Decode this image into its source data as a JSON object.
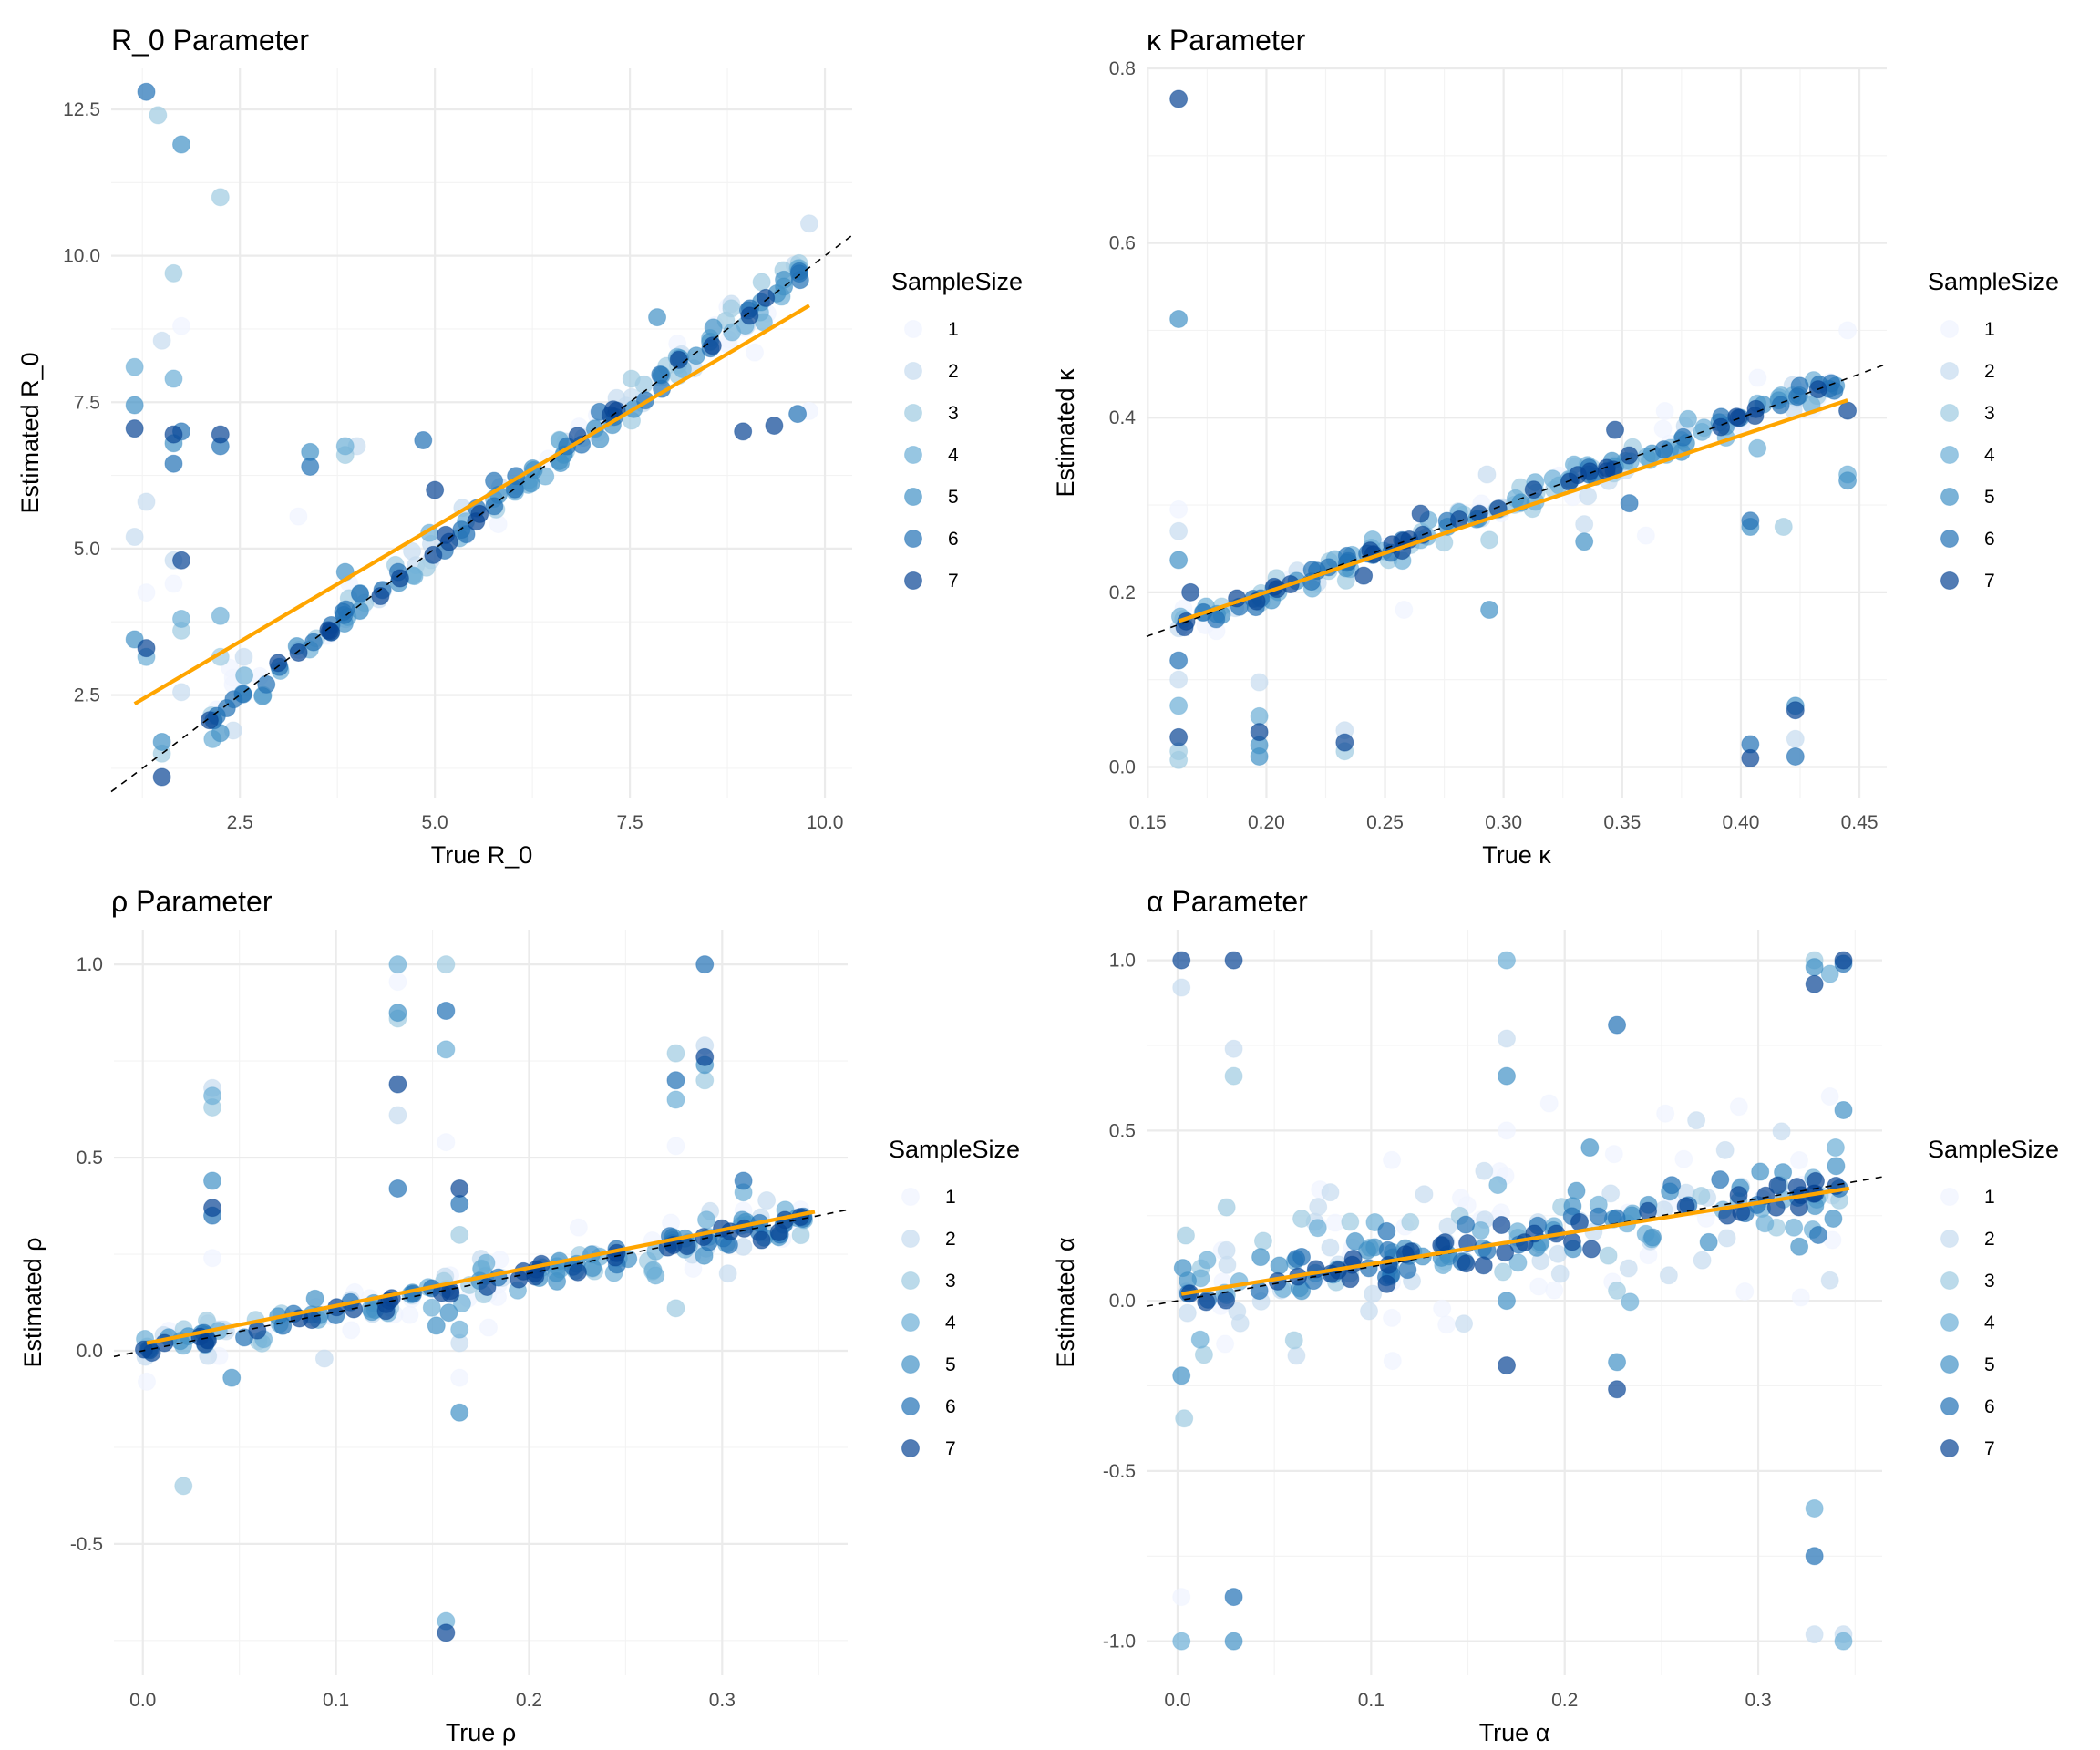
{
  "legend": {
    "title": "SampleSize",
    "levels": [
      "1",
      "2",
      "3",
      "4",
      "5",
      "6",
      "7"
    ],
    "colors": [
      "#eff3ff",
      "#c6dbef",
      "#9ecae1",
      "#6baed6",
      "#4292c6",
      "#2171b5",
      "#084594"
    ],
    "point_alpha": 0.7
  },
  "fit_line_color": "#FFA500",
  "reference_line": "y = x (dashed black)",
  "chart_data": [
    {
      "type": "scatter",
      "id": "r0",
      "title": "R_0 Parameter",
      "xlabel": "True R_0",
      "ylabel": "Estimated R_0",
      "xlim": [
        0.85,
        10.35
      ],
      "ylim": [
        0.75,
        13.2
      ],
      "xticks": [
        2.5,
        5.0,
        7.5,
        10.0
      ],
      "xtick_labels": [
        "2.5",
        "5.0",
        "7.5",
        "10.0"
      ],
      "yticks": [
        2.5,
        5.0,
        7.5,
        10.0,
        12.5
      ],
      "ytick_labels": [
        "2.5",
        "5.0",
        "7.5",
        "10.0",
        "12.5"
      ],
      "grid": true,
      "legend_position": "right",
      "fit_line": {
        "x": [
          1.15,
          9.8
        ],
        "y": [
          2.35,
          9.15
        ]
      },
      "outliers": [
        {
          "x": 1.3,
          "y": 12.8,
          "size": 6
        },
        {
          "x": 1.45,
          "y": 12.4,
          "size": 3
        },
        {
          "x": 1.75,
          "y": 11.9,
          "size": 5
        },
        {
          "x": 2.25,
          "y": 11.0,
          "size": 3
        },
        {
          "x": 1.65,
          "y": 9.7,
          "size": 3
        },
        {
          "x": 1.75,
          "y": 8.8,
          "size": 1
        },
        {
          "x": 1.5,
          "y": 8.55,
          "size": 2
        },
        {
          "x": 1.15,
          "y": 8.1,
          "size": 4
        },
        {
          "x": 1.65,
          "y": 7.9,
          "size": 4
        },
        {
          "x": 1.15,
          "y": 7.45,
          "size": 5
        },
        {
          "x": 1.15,
          "y": 7.05,
          "size": 7
        },
        {
          "x": 1.65,
          "y": 6.95,
          "size": 7
        },
        {
          "x": 1.75,
          "y": 7.0,
          "size": 6
        },
        {
          "x": 1.65,
          "y": 6.8,
          "size": 5
        },
        {
          "x": 1.65,
          "y": 6.45,
          "size": 6
        },
        {
          "x": 2.25,
          "y": 6.95,
          "size": 7
        },
        {
          "x": 2.25,
          "y": 6.75,
          "size": 6
        },
        {
          "x": 1.3,
          "y": 5.8,
          "size": 2
        },
        {
          "x": 1.15,
          "y": 5.2,
          "size": 2
        },
        {
          "x": 1.65,
          "y": 4.8,
          "size": 2
        },
        {
          "x": 1.75,
          "y": 4.8,
          "size": 7
        },
        {
          "x": 1.65,
          "y": 4.4,
          "size": 1
        },
        {
          "x": 1.3,
          "y": 4.25,
          "size": 1
        },
        {
          "x": 1.75,
          "y": 3.8,
          "size": 4
        },
        {
          "x": 1.75,
          "y": 3.6,
          "size": 3
        },
        {
          "x": 2.25,
          "y": 3.85,
          "size": 4
        },
        {
          "x": 1.15,
          "y": 3.45,
          "size": 5
        },
        {
          "x": 1.3,
          "y": 3.3,
          "size": 7
        },
        {
          "x": 1.3,
          "y": 3.15,
          "size": 4
        },
        {
          "x": 1.75,
          "y": 2.55,
          "size": 2
        },
        {
          "x": 2.25,
          "y": 3.15,
          "size": 3
        },
        {
          "x": 2.55,
          "y": 3.15,
          "size": 2
        },
        {
          "x": 1.5,
          "y": 1.7,
          "size": 5
        },
        {
          "x": 1.5,
          "y": 1.5,
          "size": 3
        },
        {
          "x": 1.5,
          "y": 1.1,
          "size": 7
        },
        {
          "x": 2.25,
          "y": 1.85,
          "size": 5
        },
        {
          "x": 3.4,
          "y": 6.65,
          "size": 5
        },
        {
          "x": 3.4,
          "y": 6.4,
          "size": 6
        },
        {
          "x": 3.85,
          "y": 6.75,
          "size": 4
        },
        {
          "x": 3.85,
          "y": 6.6,
          "size": 3
        },
        {
          "x": 4.0,
          "y": 6.75,
          "size": 2
        },
        {
          "x": 3.25,
          "y": 5.55,
          "size": 1
        },
        {
          "x": 3.85,
          "y": 4.6,
          "size": 5
        },
        {
          "x": 4.85,
          "y": 6.85,
          "size": 6
        },
        {
          "x": 5.0,
          "y": 6.0,
          "size": 7
        },
        {
          "x": 8.95,
          "y": 7.0,
          "size": 7
        },
        {
          "x": 9.35,
          "y": 7.1,
          "size": 7
        },
        {
          "x": 9.65,
          "y": 7.3,
          "size": 6
        },
        {
          "x": 9.8,
          "y": 7.35,
          "size": 1
        },
        {
          "x": 7.85,
          "y": 8.95,
          "size": 5
        },
        {
          "x": 9.8,
          "y": 10.55,
          "size": 2
        },
        {
          "x": 9.1,
          "y": 8.35,
          "size": 1
        }
      ],
      "trend": {
        "x_range": [
          2.1,
          9.8
        ],
        "slope": 1.0,
        "intercept": 0.0,
        "spread": 0.18,
        "n": 190
      }
    },
    {
      "type": "scatter",
      "id": "kappa",
      "title": "κ Parameter",
      "xlabel": "True κ",
      "ylabel": "Estimated κ",
      "xlim": [
        0.1495,
        0.4615
      ],
      "ylim": [
        -0.035,
        0.8
      ],
      "xticks": [
        0.15,
        0.2,
        0.25,
        0.3,
        0.35,
        0.4,
        0.45
      ],
      "xtick_labels": [
        "0.15",
        "0.20",
        "0.25",
        "0.30",
        "0.35",
        "0.40",
        "0.45"
      ],
      "yticks": [
        0.0,
        0.2,
        0.4,
        0.6,
        0.8
      ],
      "ytick_labels": [
        "0.0",
        "0.2",
        "0.4",
        "0.6",
        "0.8"
      ],
      "grid": true,
      "legend_position": "right",
      "fit_line": {
        "x": [
          0.163,
          0.445
        ],
        "y": [
          0.167,
          0.42
        ]
      },
      "outliers": [
        {
          "x": 0.163,
          "y": 0.765,
          "size": 7
        },
        {
          "x": 0.163,
          "y": 0.513,
          "size": 5
        },
        {
          "x": 0.163,
          "y": 0.295,
          "size": 1
        },
        {
          "x": 0.163,
          "y": 0.27,
          "size": 2
        },
        {
          "x": 0.163,
          "y": 0.237,
          "size": 5
        },
        {
          "x": 0.163,
          "y": 0.122,
          "size": 6
        },
        {
          "x": 0.163,
          "y": 0.1,
          "size": 2
        },
        {
          "x": 0.163,
          "y": 0.07,
          "size": 4
        },
        {
          "x": 0.163,
          "y": 0.034,
          "size": 7
        },
        {
          "x": 0.163,
          "y": 0.018,
          "size": 3
        },
        {
          "x": 0.163,
          "y": 0.008,
          "size": 3
        },
        {
          "x": 0.168,
          "y": 0.2,
          "size": 7
        },
        {
          "x": 0.197,
          "y": 0.097,
          "size": 2
        },
        {
          "x": 0.197,
          "y": 0.058,
          "size": 4
        },
        {
          "x": 0.197,
          "y": 0.04,
          "size": 7
        },
        {
          "x": 0.197,
          "y": 0.025,
          "size": 5
        },
        {
          "x": 0.197,
          "y": 0.012,
          "size": 5
        },
        {
          "x": 0.233,
          "y": 0.042,
          "size": 2
        },
        {
          "x": 0.233,
          "y": 0.028,
          "size": 7
        },
        {
          "x": 0.233,
          "y": 0.018,
          "size": 3
        },
        {
          "x": 0.241,
          "y": 0.219,
          "size": 7
        },
        {
          "x": 0.258,
          "y": 0.18,
          "size": 1
        },
        {
          "x": 0.265,
          "y": 0.29,
          "size": 7
        },
        {
          "x": 0.294,
          "y": 0.18,
          "size": 5
        },
        {
          "x": 0.294,
          "y": 0.26,
          "size": 3
        },
        {
          "x": 0.293,
          "y": 0.335,
          "size": 2
        },
        {
          "x": 0.334,
          "y": 0.258,
          "size": 5
        },
        {
          "x": 0.334,
          "y": 0.278,
          "size": 2
        },
        {
          "x": 0.347,
          "y": 0.386,
          "size": 7
        },
        {
          "x": 0.353,
          "y": 0.302,
          "size": 6
        },
        {
          "x": 0.36,
          "y": 0.265,
          "size": 1
        },
        {
          "x": 0.404,
          "y": 0.282,
          "size": 6
        },
        {
          "x": 0.404,
          "y": 0.275,
          "size": 5
        },
        {
          "x": 0.418,
          "y": 0.275,
          "size": 3
        },
        {
          "x": 0.404,
          "y": 0.026,
          "size": 6
        },
        {
          "x": 0.404,
          "y": 0.01,
          "size": 7
        },
        {
          "x": 0.423,
          "y": 0.07,
          "size": 5
        },
        {
          "x": 0.423,
          "y": 0.065,
          "size": 7
        },
        {
          "x": 0.423,
          "y": 0.032,
          "size": 2
        },
        {
          "x": 0.423,
          "y": 0.012,
          "size": 6
        },
        {
          "x": 0.445,
          "y": 0.5,
          "size": 1
        },
        {
          "x": 0.445,
          "y": 0.335,
          "size": 4
        },
        {
          "x": 0.445,
          "y": 0.328,
          "size": 5
        },
        {
          "x": 0.445,
          "y": 0.408,
          "size": 7
        },
        {
          "x": 0.407,
          "y": 0.365,
          "size": 4
        }
      ],
      "trend": {
        "x_range": [
          0.163,
          0.445
        ],
        "slope": 1.0,
        "intercept": 0.0,
        "spread": 0.009,
        "n": 200
      }
    },
    {
      "type": "scatter",
      "id": "rho",
      "title": "ρ Parameter",
      "xlabel": "True ρ",
      "ylabel": "Estimated ρ",
      "xlim": [
        -0.015,
        0.365
      ],
      "ylim": [
        -0.84,
        1.09
      ],
      "xticks": [
        0.0,
        0.1,
        0.2,
        0.3
      ],
      "xtick_labels": [
        "0.0",
        "0.1",
        "0.2",
        "0.3"
      ],
      "yticks": [
        -0.5,
        0.0,
        0.5,
        1.0
      ],
      "ytick_labels": [
        "-0.5",
        "0.0",
        "0.5",
        "1.0"
      ],
      "grid": true,
      "legend_position": "right",
      "fit_line": {
        "x": [
          0.002,
          0.348
        ],
        "y": [
          0.02,
          0.36
        ]
      },
      "outliers": [
        {
          "x": 0.132,
          "y": 1.0,
          "size": 4
        },
        {
          "x": 0.132,
          "y": 0.955,
          "size": 1
        },
        {
          "x": 0.132,
          "y": 0.875,
          "size": 5
        },
        {
          "x": 0.132,
          "y": 0.86,
          "size": 3
        },
        {
          "x": 0.132,
          "y": 0.69,
          "size": 7
        },
        {
          "x": 0.132,
          "y": 0.61,
          "size": 2
        },
        {
          "x": 0.132,
          "y": 0.42,
          "size": 6
        },
        {
          "x": 0.157,
          "y": 1.0,
          "size": 3
        },
        {
          "x": 0.157,
          "y": 0.88,
          "size": 6
        },
        {
          "x": 0.157,
          "y": 0.78,
          "size": 4
        },
        {
          "x": 0.157,
          "y": 0.54,
          "size": 1
        },
        {
          "x": 0.164,
          "y": 0.42,
          "size": 7
        },
        {
          "x": 0.164,
          "y": 0.38,
          "size": 6
        },
        {
          "x": 0.164,
          "y": 0.3,
          "size": 3
        },
        {
          "x": 0.164,
          "y": 0.055,
          "size": 4
        },
        {
          "x": 0.164,
          "y": 0.02,
          "size": 2
        },
        {
          "x": 0.164,
          "y": -0.07,
          "size": 1
        },
        {
          "x": 0.164,
          "y": -0.16,
          "size": 5
        },
        {
          "x": 0.157,
          "y": -0.7,
          "size": 4
        },
        {
          "x": 0.157,
          "y": -0.73,
          "size": 7
        },
        {
          "x": 0.036,
          "y": 0.68,
          "size": 2
        },
        {
          "x": 0.036,
          "y": 0.66,
          "size": 4
        },
        {
          "x": 0.036,
          "y": 0.63,
          "size": 3
        },
        {
          "x": 0.036,
          "y": 0.44,
          "size": 5
        },
        {
          "x": 0.036,
          "y": 0.37,
          "size": 7
        },
        {
          "x": 0.036,
          "y": 0.35,
          "size": 6
        },
        {
          "x": 0.036,
          "y": 0.24,
          "size": 1
        },
        {
          "x": 0.021,
          "y": -0.35,
          "size": 3
        },
        {
          "x": 0.046,
          "y": -0.07,
          "size": 5
        },
        {
          "x": 0.002,
          "y": -0.08,
          "size": 1
        },
        {
          "x": 0.276,
          "y": 0.77,
          "size": 3
        },
        {
          "x": 0.276,
          "y": 0.7,
          "size": 6
        },
        {
          "x": 0.276,
          "y": 0.65,
          "size": 4
        },
        {
          "x": 0.276,
          "y": 0.53,
          "size": 1
        },
        {
          "x": 0.276,
          "y": 0.11,
          "size": 3
        },
        {
          "x": 0.291,
          "y": 1.0,
          "size": 6
        },
        {
          "x": 0.291,
          "y": 0.79,
          "size": 2
        },
        {
          "x": 0.291,
          "y": 0.76,
          "size": 7
        },
        {
          "x": 0.291,
          "y": 0.74,
          "size": 5
        },
        {
          "x": 0.291,
          "y": 0.7,
          "size": 3
        },
        {
          "x": 0.311,
          "y": 0.44,
          "size": 6
        },
        {
          "x": 0.311,
          "y": 0.41,
          "size": 4
        },
        {
          "x": 0.303,
          "y": 0.2,
          "size": 2
        },
        {
          "x": 0.094,
          "y": -0.02,
          "size": 2
        },
        {
          "x": 0.179,
          "y": 0.06,
          "size": 1
        },
        {
          "x": 0.152,
          "y": 0.065,
          "size": 5
        }
      ],
      "trend": {
        "x_range": [
          0.0,
          0.348
        ],
        "slope": 1.0,
        "intercept": 0.0,
        "spread": 0.028,
        "n": 220
      }
    },
    {
      "type": "scatter",
      "id": "alpha",
      "title": "α Parameter",
      "xlabel": "True α",
      "ylabel": "Estimated α",
      "xlim": [
        -0.016,
        0.364
      ],
      "ylim": [
        -1.1,
        1.09
      ],
      "xticks": [
        0.0,
        0.1,
        0.2,
        0.3
      ],
      "xtick_labels": [
        "0.0",
        "0.1",
        "0.2",
        "0.3"
      ],
      "yticks": [
        -1.0,
        -0.5,
        0.0,
        0.5,
        1.0
      ],
      "ytick_labels": [
        "-1.0",
        "-0.5",
        "0.0",
        "0.5",
        "1.0"
      ],
      "grid": true,
      "legend_position": "right",
      "fit_line": {
        "x": [
          0.002,
          0.347
        ],
        "y": [
          0.02,
          0.33
        ]
      },
      "outliers": [
        {
          "x": 0.002,
          "y": 1.0,
          "size": 7
        },
        {
          "x": 0.002,
          "y": 0.92,
          "size": 2
        },
        {
          "x": 0.029,
          "y": 1.0,
          "size": 7
        },
        {
          "x": 0.029,
          "y": 0.74,
          "size": 2
        },
        {
          "x": 0.029,
          "y": 0.66,
          "size": 3
        },
        {
          "x": 0.002,
          "y": -0.22,
          "size": 5
        },
        {
          "x": 0.002,
          "y": -0.87,
          "size": 1
        },
        {
          "x": 0.002,
          "y": -1.0,
          "size": 4
        },
        {
          "x": 0.029,
          "y": -0.87,
          "size": 6
        },
        {
          "x": 0.029,
          "y": -1.0,
          "size": 5
        },
        {
          "x": 0.17,
          "y": 1.0,
          "size": 4
        },
        {
          "x": 0.17,
          "y": 0.77,
          "size": 2
        },
        {
          "x": 0.17,
          "y": 0.66,
          "size": 5
        },
        {
          "x": 0.17,
          "y": 0.5,
          "size": 1
        },
        {
          "x": 0.17,
          "y": 0.0,
          "size": 5
        },
        {
          "x": 0.17,
          "y": -0.19,
          "size": 7
        },
        {
          "x": 0.227,
          "y": 0.81,
          "size": 6
        },
        {
          "x": 0.227,
          "y": 0.03,
          "size": 3
        },
        {
          "x": 0.227,
          "y": -0.18,
          "size": 5
        },
        {
          "x": 0.227,
          "y": -0.26,
          "size": 7
        },
        {
          "x": 0.329,
          "y": 1.0,
          "size": 3
        },
        {
          "x": 0.329,
          "y": 0.98,
          "size": 5
        },
        {
          "x": 0.329,
          "y": 0.93,
          "size": 7
        },
        {
          "x": 0.337,
          "y": 0.96,
          "size": 4
        },
        {
          "x": 0.344,
          "y": 1.0,
          "size": 7
        },
        {
          "x": 0.344,
          "y": 0.99,
          "size": 6
        },
        {
          "x": 0.329,
          "y": -0.61,
          "size": 4
        },
        {
          "x": 0.329,
          "y": -0.75,
          "size": 6
        },
        {
          "x": 0.329,
          "y": -0.98,
          "size": 2
        },
        {
          "x": 0.344,
          "y": -0.98,
          "size": 2
        },
        {
          "x": 0.344,
          "y": -1.0,
          "size": 4
        },
        {
          "x": 0.344,
          "y": 0.56,
          "size": 5
        },
        {
          "x": 0.337,
          "y": 0.6,
          "size": 1
        },
        {
          "x": 0.192,
          "y": 0.58,
          "size": 1
        },
        {
          "x": 0.29,
          "y": 0.57,
          "size": 1
        },
        {
          "x": 0.252,
          "y": 0.55,
          "size": 1
        },
        {
          "x": 0.268,
          "y": 0.53,
          "size": 2
        },
        {
          "x": 0.213,
          "y": 0.45,
          "size": 5
        },
        {
          "x": 0.337,
          "y": 0.06,
          "size": 2
        },
        {
          "x": 0.322,
          "y": 0.01,
          "size": 1
        },
        {
          "x": 0.139,
          "y": -0.07,
          "size": 1
        }
      ],
      "trend": {
        "x_range": [
          0.002,
          0.347
        ],
        "slope": 0.9,
        "intercept": 0.02,
        "spread": 0.09,
        "n": 260
      }
    }
  ]
}
